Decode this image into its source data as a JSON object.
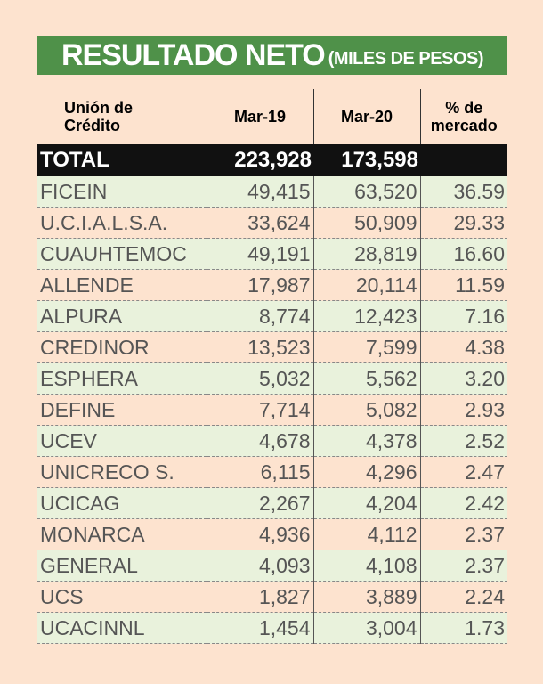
{
  "title": "RESULTADO NETO",
  "subtitle": "(MILES DE PESOS)",
  "headers": {
    "col0_line1": "Unión de",
    "col0_line2": "Crédito",
    "col1": "Mar-19",
    "col2": "Mar-20",
    "col3_line1": "% de",
    "col3_line2": "mercado"
  },
  "total": {
    "label": "TOTAL",
    "mar19": "223,928",
    "mar20": "173,598",
    "share": ""
  },
  "rows": [
    {
      "name": "FICEIN",
      "mar19": "49,415",
      "mar20": "63,520",
      "share": "36.59"
    },
    {
      "name": "U.C.I.A.L.S.A.",
      "mar19": "33,624",
      "mar20": "50,909",
      "share": "29.33"
    },
    {
      "name": "CUAUHTEMOC",
      "mar19": "49,191",
      "mar20": "28,819",
      "share": "16.60"
    },
    {
      "name": "ALLENDE",
      "mar19": "17,987",
      "mar20": "20,114",
      "share": "11.59"
    },
    {
      "name": "ALPURA",
      "mar19": "8,774",
      "mar20": "12,423",
      "share": "7.16"
    },
    {
      "name": "CREDINOR",
      "mar19": "13,523",
      "mar20": "7,599",
      "share": "4.38"
    },
    {
      "name": "ESPHERA",
      "mar19": "5,032",
      "mar20": "5,562",
      "share": "3.20"
    },
    {
      "name": "DEFINE",
      "mar19": "7,714",
      "mar20": "5,082",
      "share": "2.93"
    },
    {
      "name": "UCEV",
      "mar19": "4,678",
      "mar20": "4,378",
      "share": "2.52"
    },
    {
      "name": "UNICRECO S.",
      "mar19": "6,115",
      "mar20": "4,296",
      "share": "2.47"
    },
    {
      "name": "UCICAG",
      "mar19": "2,267",
      "mar20": "4,204",
      "share": "2.42"
    },
    {
      "name": "MONARCA",
      "mar19": "4,936",
      "mar20": "4,112",
      "share": "2.37"
    },
    {
      "name": "GENERAL",
      "mar19": "4,093",
      "mar20": "4,108",
      "share": "2.37"
    },
    {
      "name": "UCS",
      "mar19": "1,827",
      "mar20": "3,889",
      "share": "2.24"
    },
    {
      "name": "UCACINNL",
      "mar19": "1,454",
      "mar20": "3,004",
      "share": "1.73"
    }
  ],
  "colors": {
    "banner": "#4f9149",
    "background": "#fde3cf",
    "stripe": "#e9f2dc",
    "total_bg": "#111111"
  }
}
